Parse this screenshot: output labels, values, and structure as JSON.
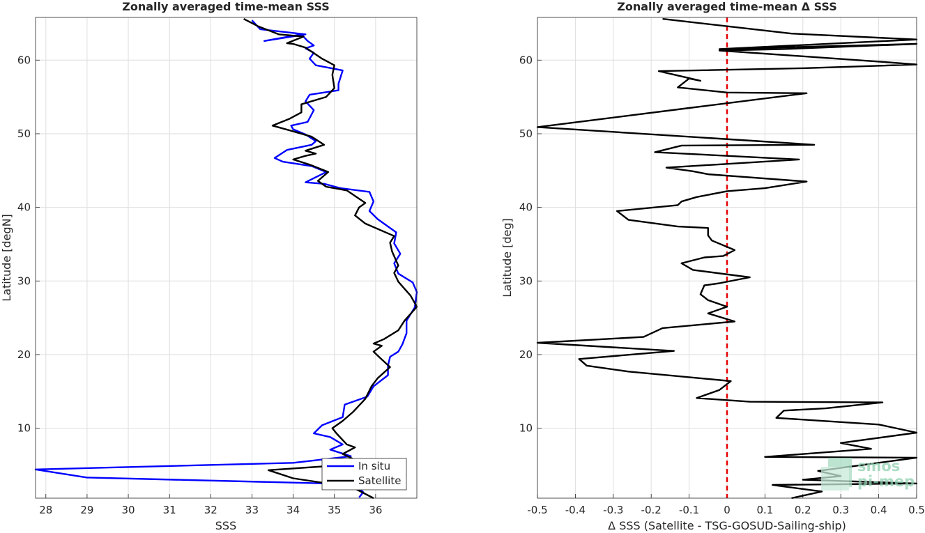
{
  "chart_data": [
    {
      "type": "line",
      "title": "Zonally averaged time-mean SSS",
      "xlabel": "SSS",
      "ylabel": "Latitude [degN]",
      "xlim": [
        27.75,
        37.0
      ],
      "ylim": [
        0.5,
        65.8
      ],
      "xticks": [
        28,
        29,
        30,
        31,
        32,
        33,
        34,
        35,
        36
      ],
      "yticks": [
        10,
        20,
        30,
        40,
        50,
        60
      ],
      "grid": true,
      "legend_position": "bottom-right",
      "series": [
        {
          "name": "In situ",
          "color": "#0000ff",
          "points": [
            [
              35.6,
              0.6
            ],
            [
              35.7,
              1.3
            ],
            [
              35.5,
              2.4
            ],
            [
              29.0,
              3.3
            ],
            [
              27.75,
              4.4
            ],
            [
              34.0,
              5.3
            ],
            [
              35.4,
              6.2
            ],
            [
              34.9,
              7.1
            ],
            [
              35.2,
              7.8
            ],
            [
              34.9,
              8.8
            ],
            [
              34.5,
              9.3
            ],
            [
              34.7,
              10.4
            ],
            [
              35.2,
              11.5
            ],
            [
              35.25,
              13.2
            ],
            [
              35.8,
              14.3
            ],
            [
              35.95,
              15.7
            ],
            [
              36.3,
              17.2
            ],
            [
              36.3,
              18.5
            ],
            [
              36.35,
              19.7
            ],
            [
              36.55,
              20.4
            ],
            [
              36.65,
              21.4
            ],
            [
              36.75,
              22.9
            ],
            [
              36.75,
              24.6
            ],
            [
              36.95,
              26.4
            ],
            [
              37.0,
              28.5
            ],
            [
              36.9,
              29.8
            ],
            [
              36.55,
              31.0
            ],
            [
              36.45,
              32.4
            ],
            [
              36.6,
              33.7
            ],
            [
              36.45,
              35.1
            ],
            [
              36.5,
              36.6
            ],
            [
              36.05,
              38.4
            ],
            [
              35.85,
              39.5
            ],
            [
              35.95,
              40.8
            ],
            [
              35.85,
              42.1
            ],
            [
              35.15,
              42.6
            ],
            [
              34.75,
              43.2
            ],
            [
              34.3,
              43.4
            ],
            [
              34.8,
              44.8
            ],
            [
              34.45,
              45.6
            ],
            [
              33.75,
              46.2
            ],
            [
              33.55,
              46.7
            ],
            [
              33.85,
              47.8
            ],
            [
              34.45,
              48.5
            ],
            [
              34.55,
              49.0
            ],
            [
              34.3,
              49.9
            ],
            [
              34.0,
              50.6
            ],
            [
              33.95,
              51.1
            ],
            [
              34.35,
              51.6
            ],
            [
              34.5,
              53.2
            ],
            [
              34.3,
              54.4
            ],
            [
              34.4,
              55.3
            ],
            [
              35.1,
              55.9
            ],
            [
              35.1,
              56.8
            ],
            [
              35.2,
              58.6
            ],
            [
              34.55,
              59.3
            ],
            [
              34.4,
              60.2
            ],
            [
              34.5,
              61.0
            ],
            [
              34.3,
              61.6
            ],
            [
              34.5,
              62.0
            ],
            [
              34.35,
              62.6
            ],
            [
              34.2,
              63.5
            ],
            [
              33.3,
              62.6
            ],
            [
              34.3,
              63.5
            ],
            [
              33.2,
              64.2
            ],
            [
              33.0,
              65.4
            ]
          ]
        },
        {
          "name": "Satellite",
          "color": "#000000",
          "points": [
            [
              35.95,
              0.5
            ],
            [
              35.5,
              1.8
            ],
            [
              35.3,
              2.1
            ],
            [
              34.0,
              3.2
            ],
            [
              33.4,
              4.3
            ],
            [
              35.2,
              5.0
            ],
            [
              35.5,
              5.7
            ],
            [
              35.2,
              6.5
            ],
            [
              35.5,
              7.4
            ],
            [
              35.3,
              7.8
            ],
            [
              35.05,
              9.3
            ],
            [
              34.95,
              10.0
            ],
            [
              35.2,
              11.0
            ],
            [
              35.45,
              12.2
            ],
            [
              35.75,
              14.0
            ],
            [
              35.9,
              15.7
            ],
            [
              36.05,
              16.8
            ],
            [
              36.35,
              18.3
            ],
            [
              36.1,
              19.6
            ],
            [
              35.95,
              20.4
            ],
            [
              36.15,
              21.2
            ],
            [
              35.95,
              21.5
            ],
            [
              36.2,
              22.1
            ],
            [
              36.55,
              23.3
            ],
            [
              36.7,
              24.6
            ],
            [
              37.0,
              26.5
            ],
            [
              36.85,
              28.0
            ],
            [
              36.55,
              29.9
            ],
            [
              36.45,
              31.1
            ],
            [
              36.55,
              32.1
            ],
            [
              36.4,
              34.0
            ],
            [
              36.35,
              35.2
            ],
            [
              36.45,
              36.1
            ],
            [
              35.75,
              37.8
            ],
            [
              35.5,
              38.9
            ],
            [
              35.6,
              40.0
            ],
            [
              35.75,
              40.6
            ],
            [
              35.3,
              42.3
            ],
            [
              34.8,
              42.8
            ],
            [
              34.6,
              43.6
            ],
            [
              34.85,
              44.8
            ],
            [
              34.4,
              45.8
            ],
            [
              34.0,
              46.5
            ],
            [
              34.3,
              47.0
            ],
            [
              34.55,
              47.3
            ],
            [
              34.3,
              47.7
            ],
            [
              34.75,
              48.5
            ],
            [
              34.45,
              49.6
            ],
            [
              33.95,
              50.4
            ],
            [
              33.5,
              51.1
            ],
            [
              33.9,
              52.0
            ],
            [
              34.2,
              52.9
            ],
            [
              34.2,
              54.0
            ],
            [
              34.8,
              55.0
            ],
            [
              35.0,
              56.2
            ],
            [
              34.95,
              58.0
            ],
            [
              35.0,
              59.3
            ],
            [
              34.7,
              60.2
            ],
            [
              34.3,
              61.7
            ],
            [
              34.0,
              62.2
            ],
            [
              33.85,
              62.3
            ],
            [
              34.25,
              63.2
            ],
            [
              33.65,
              63.5
            ],
            [
              33.15,
              64.6
            ],
            [
              32.8,
              65.6
            ]
          ]
        }
      ]
    },
    {
      "type": "line",
      "title": "Zonally averaged time-mean Δ SSS",
      "xlabel": "Δ SSS (Satellite - TSG-GOSUD-Sailing-ship)",
      "ylabel": "Latitude [deg]",
      "xlim": [
        -0.5,
        0.5
      ],
      "ylim": [
        0.5,
        65.8
      ],
      "xticks": [
        -0.5,
        -0.4,
        -0.3,
        -0.2,
        -0.1,
        0,
        0.1,
        0.2,
        0.3,
        0.4,
        0.5
      ],
      "xtick_labels": [
        "-0.5",
        "-0.4",
        "-0.3",
        "-0.2",
        "-0.1",
        "0",
        "0.1",
        "0.2",
        "0.3",
        "0.4",
        "0.5"
      ],
      "yticks": [
        10,
        20,
        30,
        40,
        50,
        60
      ],
      "grid": true,
      "zero_line": {
        "x": 0,
        "color": "#e60000",
        "style": "dashed"
      },
      "series": [
        {
          "color": "#000000",
          "points": [
            [
              0.17,
              0.5
            ],
            [
              0.25,
              1.4
            ],
            [
              0.12,
              2.3
            ],
            [
              0.5,
              2.5
            ],
            [
              0.2,
              3.0
            ],
            [
              0.3,
              3.5
            ],
            [
              0.24,
              4.2
            ],
            [
              0.5,
              6.0
            ],
            [
              0.1,
              6.1
            ],
            [
              0.38,
              7.2
            ],
            [
              0.3,
              8.0
            ],
            [
              0.5,
              9.4
            ],
            [
              0.4,
              10.5
            ],
            [
              0.13,
              11.4
            ],
            [
              0.15,
              12.4
            ],
            [
              0.26,
              12.7
            ],
            [
              0.41,
              13.5
            ],
            [
              0.06,
              13.6
            ],
            [
              -0.08,
              14.1
            ],
            [
              -0.02,
              15.2
            ],
            [
              0.0,
              16.0
            ],
            [
              0.01,
              16.4
            ],
            [
              -0.26,
              17.7
            ],
            [
              -0.37,
              18.5
            ],
            [
              -0.39,
              19.4
            ],
            [
              -0.14,
              20.5
            ],
            [
              -0.5,
              21.6
            ],
            [
              -0.22,
              22.4
            ],
            [
              -0.17,
              23.6
            ],
            [
              0.02,
              24.5
            ],
            [
              -0.05,
              25.6
            ],
            [
              0.0,
              26.5
            ],
            [
              -0.05,
              27.4
            ],
            [
              -0.07,
              28.2
            ],
            [
              -0.06,
              29.4
            ],
            [
              -0.02,
              29.7
            ],
            [
              0.06,
              30.5
            ],
            [
              -0.09,
              31.5
            ],
            [
              -0.12,
              32.4
            ],
            [
              -0.06,
              33.2
            ],
            [
              -0.01,
              33.4
            ],
            [
              0.02,
              34.2
            ],
            [
              -0.04,
              35.5
            ],
            [
              -0.05,
              36.2
            ],
            [
              -0.05,
              37.2
            ],
            [
              -0.13,
              37.4
            ],
            [
              -0.26,
              38.3
            ],
            [
              -0.29,
              39.5
            ],
            [
              -0.13,
              40.3
            ],
            [
              -0.12,
              40.8
            ],
            [
              -0.08,
              41.4
            ],
            [
              0.0,
              42.2
            ],
            [
              0.1,
              42.6
            ],
            [
              0.21,
              43.5
            ],
            [
              -0.05,
              44.5
            ],
            [
              -0.09,
              44.9
            ],
            [
              -0.16,
              45.4
            ],
            [
              0.19,
              46.5
            ],
            [
              -0.19,
              47.5
            ],
            [
              -0.12,
              48.4
            ],
            [
              0.23,
              48.5
            ],
            [
              0.08,
              49.0
            ],
            [
              -0.5,
              50.9
            ],
            [
              -0.1,
              53.5
            ],
            [
              0.21,
              55.5
            ],
            [
              0.0,
              55.6
            ],
            [
              -0.13,
              56.3
            ],
            [
              -0.1,
              57.5
            ],
            [
              -0.07,
              57.2
            ],
            [
              -0.18,
              58.5
            ],
            [
              0.2,
              58.9
            ],
            [
              0.5,
              59.4
            ],
            [
              0.4,
              59.8
            ],
            [
              -0.02,
              61.3
            ],
            [
              0.15,
              61.5
            ],
            [
              0.5,
              62.2
            ],
            [
              -0.02,
              61.5
            ],
            [
              0.5,
              62.8
            ],
            [
              0.17,
              63.6
            ],
            [
              -0.17,
              65.6
            ]
          ]
        }
      ]
    }
  ]
}
